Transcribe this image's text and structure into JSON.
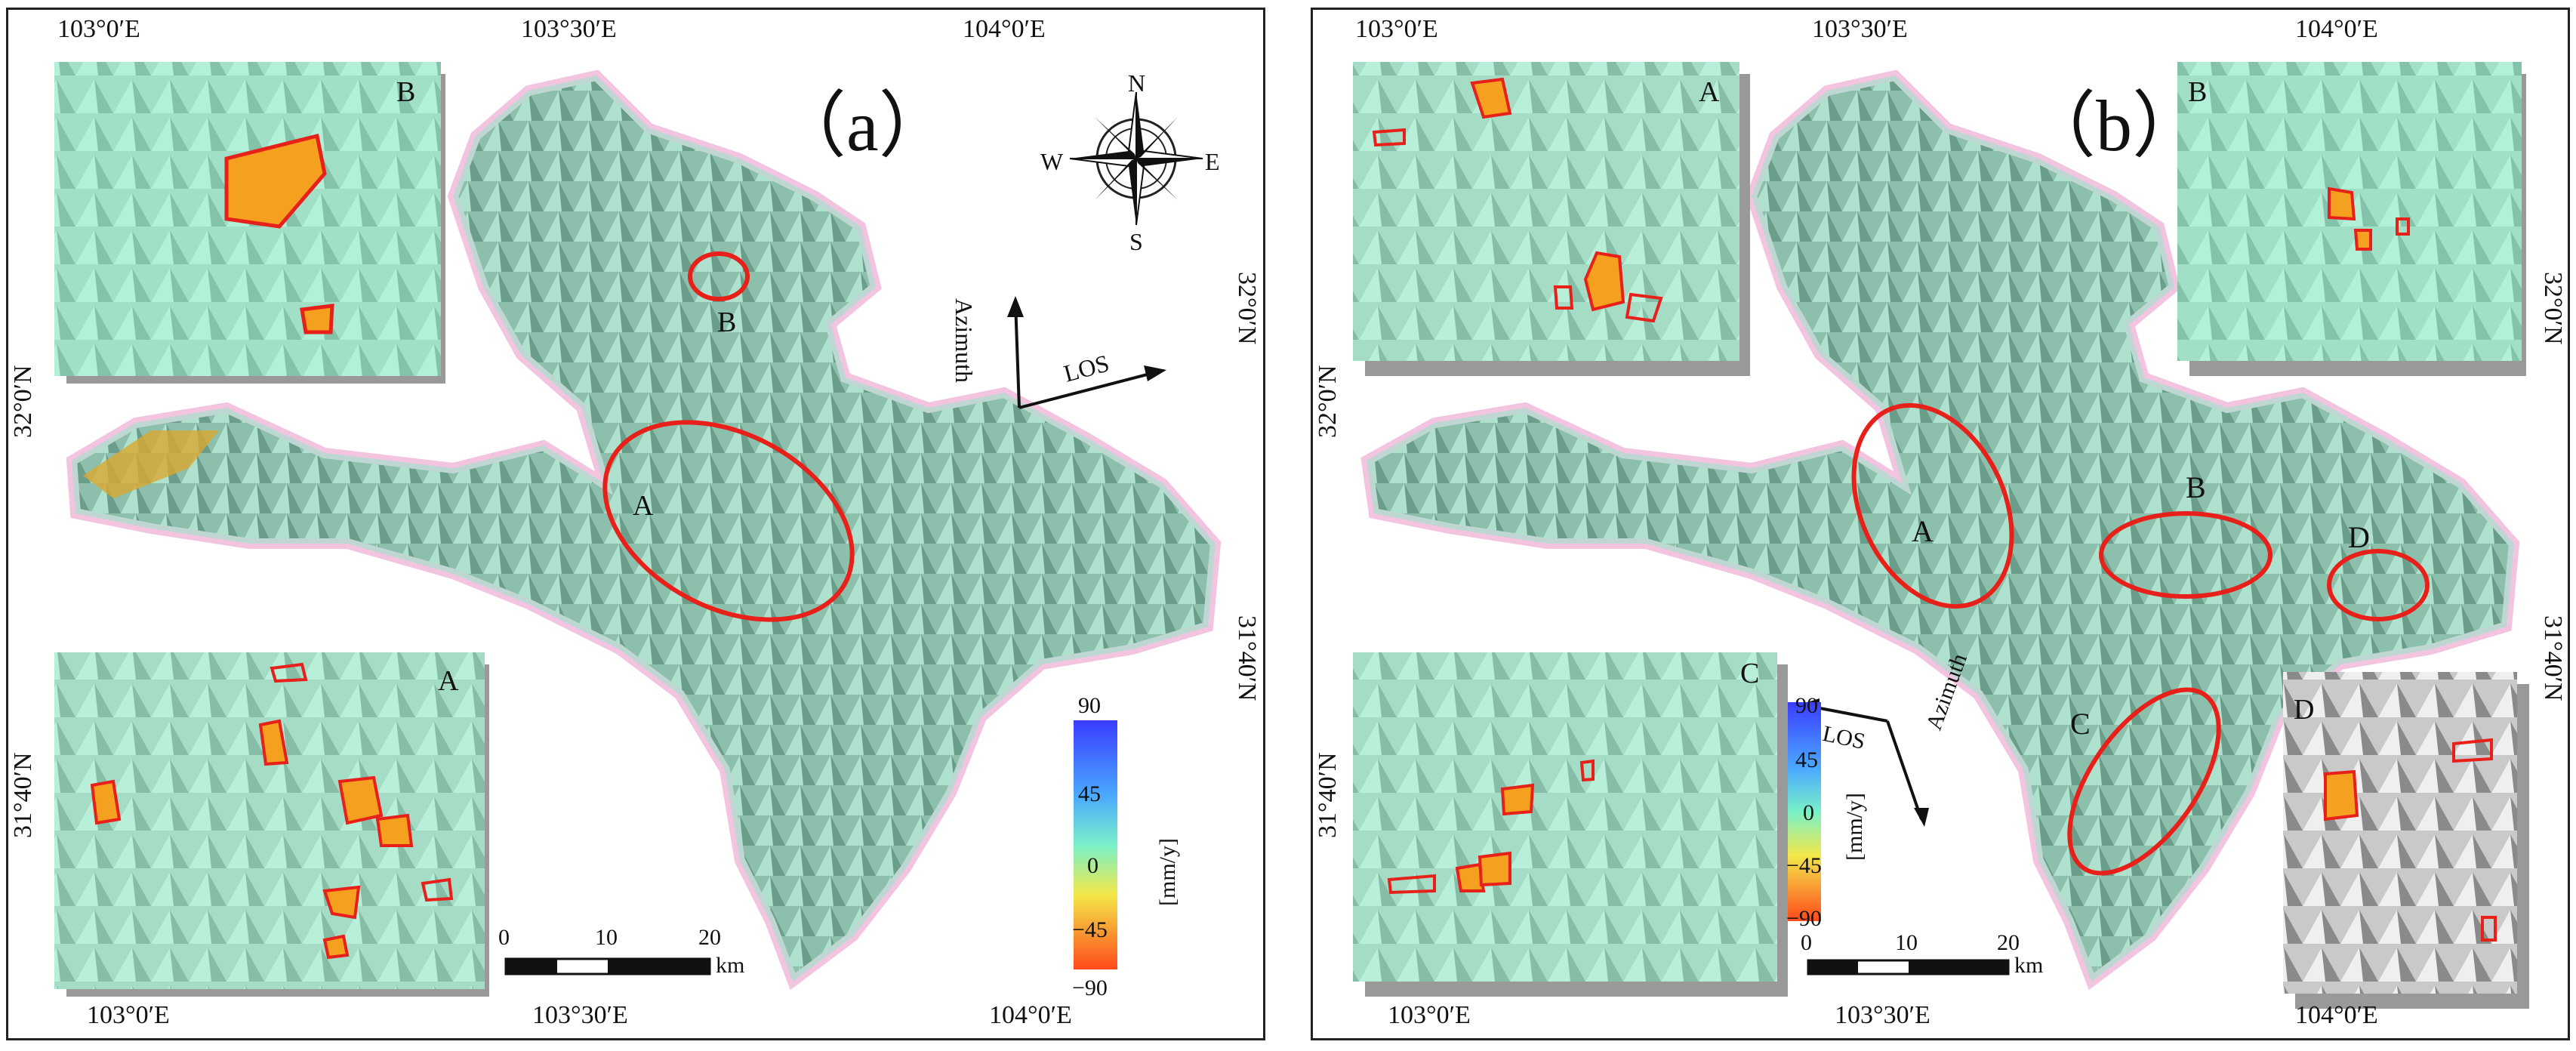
{
  "panels": [
    {
      "id": "a",
      "title": "（a）",
      "top_ticks": [
        "103°0′E",
        "103°30′E",
        "104°0′E"
      ],
      "bottom_ticks": [
        "103°0′E",
        "103°30′E",
        "104°0′E"
      ],
      "left_ticks": [
        "32°0′N",
        "31°40′N"
      ],
      "right_ticks": [
        "32°0′N",
        "31°40′N"
      ],
      "compass": {
        "n": "N",
        "s": "S",
        "e": "E",
        "w": "W"
      },
      "arrows": {
        "azimuth": "Azimuth",
        "los": "LOS"
      },
      "site_labels": [
        "A",
        "B"
      ],
      "inset_labels": [
        "B",
        "A"
      ],
      "legend": {
        "max": "90",
        "t1": "45",
        "mid": "0",
        "t3": "−45",
        "min": "−90",
        "unit": "[mm/y]"
      },
      "scalebar": {
        "t0": "0",
        "t1": "10",
        "t2": "20",
        "unit": "km"
      }
    },
    {
      "id": "b",
      "title": "（b）",
      "top_ticks": [
        "103°0′E",
        "103°30′E",
        "104°0′E"
      ],
      "bottom_ticks": [
        "103°0′E",
        "103°30′E",
        "104°0′E"
      ],
      "left_ticks": [
        "32°0′N",
        "31°40′N"
      ],
      "right_ticks": [
        "32°0′N",
        "31°40′N"
      ],
      "arrows": {
        "azimuth": "Azimuth",
        "los": "LOS"
      },
      "site_labels": [
        "A",
        "B",
        "C",
        "D"
      ],
      "inset_labels": [
        "A",
        "B",
        "C",
        "D"
      ],
      "legend": {
        "max": "90",
        "t1": "45",
        "mid": "0",
        "t3": "−45",
        "min": "−90",
        "unit": "[mm/y]"
      },
      "scalebar": {
        "t0": "0",
        "t1": "10",
        "t2": "20",
        "unit": "km"
      }
    }
  ],
  "colors": {
    "terrain": "#8e8e8e",
    "terrain_dark": "#4a4a4a",
    "stable": "#7ff0c4",
    "highlight": "#e8201a",
    "deform": "#f6a020",
    "boundary": "#f3c4df",
    "frame": "#222222"
  }
}
